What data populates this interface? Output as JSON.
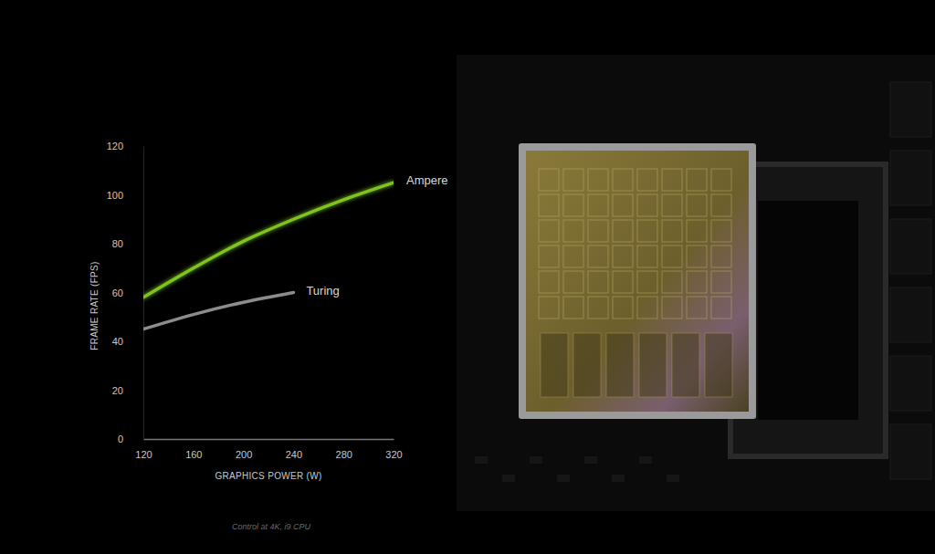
{
  "chart_data": {
    "type": "line",
    "x_label": "GRAPHICS POWER (W)",
    "y_label": "FRAME RATE (FPS)",
    "annotation": "Control at 4K, i9 CPU",
    "x": [
      120,
      160,
      200,
      240,
      280,
      320
    ],
    "series": [
      {
        "name": "Ampere",
        "color": "#7fc41c",
        "values": [
          58,
          70,
          81,
          90,
          98,
          105
        ]
      },
      {
        "name": "Turing",
        "color": "#8c8c8c",
        "values": [
          45,
          51,
          56,
          60,
          null,
          null
        ]
      }
    ],
    "xlim": [
      120,
      320
    ],
    "xticks": [
      120,
      160,
      200,
      240,
      280,
      320
    ],
    "ylim": [
      0,
      120
    ],
    "yticks": [
      0,
      20,
      40,
      60,
      80,
      100,
      120
    ],
    "grid": false
  }
}
